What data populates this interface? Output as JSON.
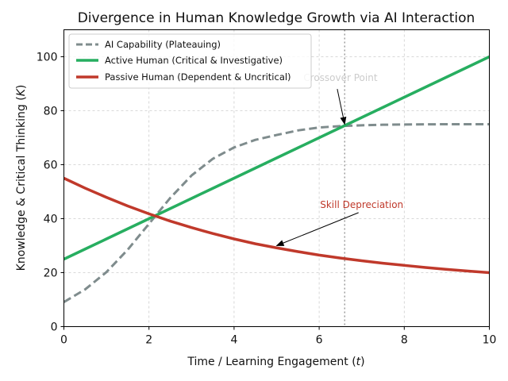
{
  "chart_data": {
    "type": "line",
    "title": "Divergence in Human Knowledge Growth via AI Interaction",
    "xlabel_prefix": "Time / Learning Engagement (",
    "xlabel_var": "t",
    "xlabel_suffix": ")",
    "ylabel_prefix": "Knowledge & Critical Thinking (",
    "ylabel_var": "K",
    "ylabel_suffix": ")",
    "xlim": [
      0,
      10
    ],
    "ylim": [
      0,
      110
    ],
    "xticks": [
      0,
      2,
      4,
      6,
      8,
      10
    ],
    "yticks": [
      0,
      20,
      40,
      60,
      80,
      100
    ],
    "grid": true,
    "legend_position": "top-left",
    "x": [
      0,
      0.5,
      1,
      1.5,
      2,
      2.5,
      3,
      3.5,
      4,
      4.5,
      5,
      5.5,
      6,
      6.5,
      7,
      7.5,
      8,
      8.5,
      9,
      9.5,
      10
    ],
    "series": [
      {
        "name": "AI Capability (Plateauing)",
        "color": "#7f8c8d",
        "style": "dashed",
        "values": [
          9.1,
          13.8,
          20.2,
          28.5,
          38.1,
          47.7,
          56.0,
          62.2,
          66.4,
          69.2,
          71.0,
          72.7,
          73.8,
          74.3,
          74.6,
          74.8,
          74.9,
          74.95,
          75.0,
          75.0,
          75.0
        ]
      },
      {
        "name": "Active Human (Critical & Investigative)",
        "color": "#27ae60",
        "style": "solid",
        "values": [
          25,
          28.75,
          32.5,
          36.25,
          40,
          43.75,
          47.5,
          51.25,
          55,
          58.75,
          62.5,
          66.25,
          70,
          73.75,
          77.5,
          81.25,
          85,
          88.75,
          92.5,
          96.25,
          100
        ]
      },
      {
        "name": "Passive Human (Dependent & Uncritical)",
        "color": "#c0392b",
        "style": "solid",
        "values": [
          55,
          51.3,
          47.9,
          44.7,
          41.8,
          39.1,
          36.7,
          34.5,
          32.5,
          30.7,
          29.2,
          27.8,
          26.5,
          25.4,
          24.4,
          23.5,
          22.7,
          21.9,
          21.2,
          20.6,
          20.0
        ]
      }
    ],
    "vline": {
      "x": 6.6,
      "color": "#9e9e9e",
      "style": "dotted"
    },
    "annotations": [
      {
        "text": "Crossover Point",
        "text_x": 6.5,
        "text_y": 91,
        "arrow_to": [
          6.6,
          75
        ],
        "color": "#cccccc"
      },
      {
        "text": "Skill Depreciation",
        "text_x": 7.0,
        "text_y": 44,
        "arrow_to": [
          5.0,
          30
        ],
        "color": "#c0392b"
      }
    ]
  }
}
